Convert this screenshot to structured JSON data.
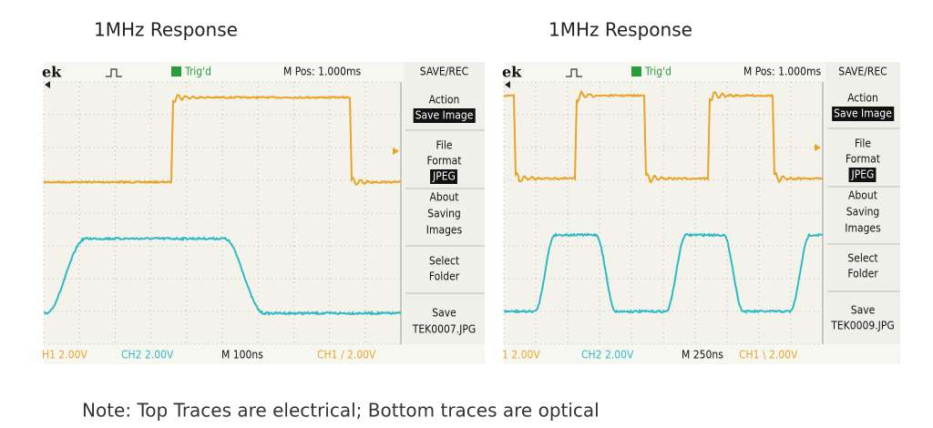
{
  "panels": [
    {
      "title": "1MHz Response",
      "header": {
        "logo": "ek",
        "trigger": "Trig'd",
        "position": "M Pos: 1.000ms",
        "menu_title": "SAVE/REC"
      },
      "menu": [
        {
          "text": "Action"
        },
        {
          "text": "Save Image",
          "inverse": true
        },
        {
          "text": "File"
        },
        {
          "text": "Format"
        },
        {
          "text": "JPEG",
          "inverse": true
        },
        {
          "text": "About"
        },
        {
          "text": "Saving"
        },
        {
          "text": "Images"
        },
        {
          "text": "Select"
        },
        {
          "text": "Folder"
        },
        {
          "text": "Save"
        },
        {
          "text": "TEK0007.JPG"
        }
      ],
      "status": {
        "ch1": "H1 2.00V",
        "ch2": "CH2 2.00V",
        "timebase": "M 100ns",
        "trigger": "CH1 / 2.00V"
      }
    },
    {
      "title": "1MHz Response",
      "header": {
        "logo": "ek",
        "trigger": "Trig'd",
        "position": "M Pos: 1.000ms",
        "menu_title": "SAVE/REC"
      },
      "menu": [
        {
          "text": "Action"
        },
        {
          "text": "Save Image",
          "inverse": true
        },
        {
          "text": "File"
        },
        {
          "text": "Format"
        },
        {
          "text": "JPEG",
          "inverse": true
        },
        {
          "text": "About"
        },
        {
          "text": "Saving"
        },
        {
          "text": "Images"
        },
        {
          "text": "Select"
        },
        {
          "text": "Folder"
        },
        {
          "text": "Save"
        },
        {
          "text": "TEK0009.JPG"
        }
      ],
      "status": {
        "ch1": "1 2.00V",
        "ch2": "CH2 2.00V",
        "timebase": "M 250ns",
        "trigger": "CH1 \\ 2.00V"
      }
    }
  ],
  "note": "Note: Top Traces are electrical;  Bottom traces are optical"
}
